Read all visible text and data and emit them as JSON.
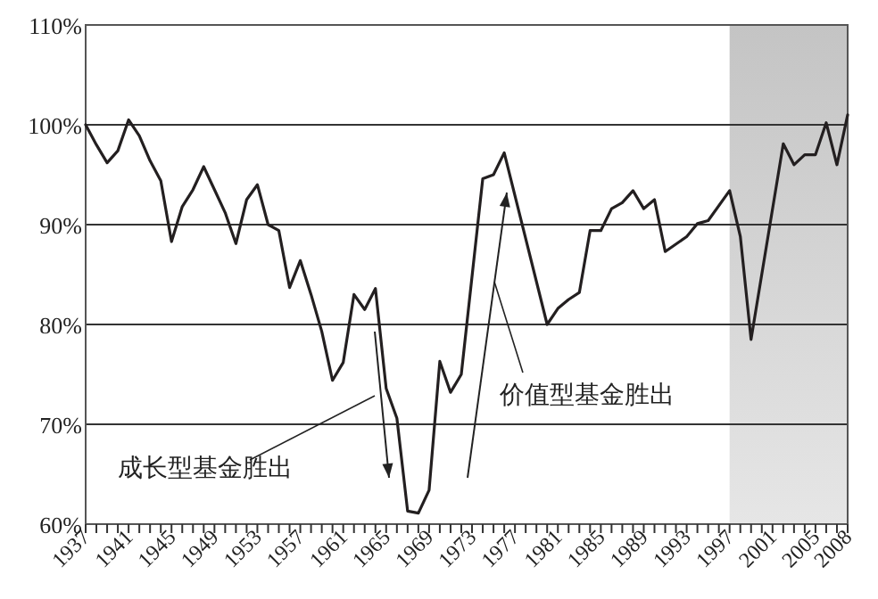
{
  "chart_data": {
    "type": "line",
    "x": [
      1937,
      1938,
      1939,
      1940,
      1941,
      1942,
      1943,
      1944,
      1945,
      1946,
      1947,
      1948,
      1949,
      1950,
      1951,
      1952,
      1953,
      1954,
      1955,
      1956,
      1957,
      1958,
      1959,
      1960,
      1961,
      1962,
      1963,
      1964,
      1965,
      1966,
      1967,
      1968,
      1969,
      1970,
      1971,
      1972,
      1974,
      1975,
      1976,
      1980,
      1981,
      1982,
      1983,
      1984,
      1985,
      1986,
      1987,
      1988,
      1989,
      1990,
      1991,
      1993,
      1994,
      1995,
      1997,
      1998,
      1999,
      2002,
      2003,
      2004,
      2005,
      2006,
      2007,
      2008
    ],
    "series": [
      {
        "color": "#231f20",
        "values": [
          100,
          98,
          96.2,
          97.4,
          100.5,
          98.9,
          96.4,
          94.4,
          88.3,
          91.8,
          93.5,
          95.8,
          93.5,
          91.2,
          88.1,
          92.5,
          94,
          90,
          89.4,
          83.7,
          86.4,
          83,
          79.3,
          74.4,
          76.2,
          83,
          81.5,
          83.6,
          73.6,
          70.6,
          61.3,
          61.1,
          63.4,
          76.3,
          73.2,
          75,
          94.6,
          95,
          97.2,
          80,
          81.6,
          82.5,
          83.2,
          89.4,
          89.4,
          91.6,
          92.2,
          93.4,
          91.6,
          92.5,
          87.3,
          88.8,
          90.1,
          90.4,
          93.4,
          88.8,
          78.5,
          98.1,
          96,
          97,
          97,
          100.2,
          96,
          101
        ]
      }
    ],
    "xlim": [
      1937,
      2008
    ],
    "ylim": [
      60,
      110
    ],
    "xticks": [
      1937,
      {
        "value": 1938,
        "label": null
      },
      {
        "value": 1939,
        "label": null
      },
      {
        "value": 1940,
        "label": null
      },
      1941,
      {
        "value": 1942,
        "label": null
      },
      {
        "value": 1943,
        "label": null
      },
      {
        "value": 1944,
        "label": null
      },
      1945,
      {
        "value": 1946,
        "label": null
      },
      {
        "value": 1947,
        "label": null
      },
      {
        "value": 1948,
        "label": null
      },
      1949,
      {
        "value": 1950,
        "label": null
      },
      {
        "value": 1951,
        "label": null
      },
      {
        "value": 1952,
        "label": null
      },
      1953,
      {
        "value": 1954,
        "label": null
      },
      {
        "value": 1955,
        "label": null
      },
      {
        "value": 1956,
        "label": null
      },
      1957,
      {
        "value": 1958,
        "label": null
      },
      {
        "value": 1959,
        "label": null
      },
      {
        "value": 1960,
        "label": null
      },
      1961,
      {
        "value": 1962,
        "label": null
      },
      {
        "value": 1963,
        "label": null
      },
      {
        "value": 1964,
        "label": null
      },
      1965,
      {
        "value": 1966,
        "label": null
      },
      {
        "value": 1967,
        "label": null
      },
      {
        "value": 1968,
        "label": null
      },
      1969,
      {
        "value": 1970,
        "label": null
      },
      {
        "value": 1971,
        "label": null
      },
      {
        "value": 1972,
        "label": null
      },
      1973,
      {
        "value": 1974,
        "label": null
      },
      {
        "value": 1975,
        "label": null
      },
      {
        "value": 1976,
        "label": null
      },
      1977,
      {
        "value": 1978,
        "label": null
      },
      {
        "value": 1979,
        "label": null
      },
      {
        "value": 1980,
        "label": null
      },
      1981,
      {
        "value": 1982,
        "label": null
      },
      {
        "value": 1983,
        "label": null
      },
      {
        "value": 1984,
        "label": null
      },
      1985,
      {
        "value": 1986,
        "label": null
      },
      {
        "value": 1987,
        "label": null
      },
      {
        "value": 1988,
        "label": null
      },
      1989,
      {
        "value": 1990,
        "label": null
      },
      {
        "value": 1991,
        "label": null
      },
      {
        "value": 1992,
        "label": null
      },
      1993,
      {
        "value": 1994,
        "label": null
      },
      {
        "value": 1995,
        "label": null
      },
      {
        "value": 1996,
        "label": null
      },
      1997,
      {
        "value": 1998,
        "label": null
      },
      {
        "value": 1999,
        "label": null
      },
      {
        "value": 2000,
        "label": null
      },
      2001,
      {
        "value": 2002,
        "label": null
      },
      {
        "value": 2003,
        "label": null
      },
      {
        "value": 2004,
        "label": null
      },
      2005,
      {
        "value": 2006,
        "label": null
      },
      {
        "value": 2007,
        "label": null
      },
      2008
    ],
    "yticks": [
      {
        "value": 60,
        "label": "60%"
      },
      {
        "value": 70,
        "label": "70%"
      },
      {
        "value": 80,
        "label": "80%"
      },
      {
        "value": 90,
        "label": "90%"
      },
      {
        "value": 100,
        "label": "100%"
      },
      {
        "value": 110,
        "label": "110%"
      }
    ],
    "grid": "y",
    "marker": "none",
    "line_style": "solid",
    "bands": [
      {
        "axis": "x",
        "from": 1997,
        "to": 2008,
        "color": "#c4c4c4"
      }
    ],
    "annotations": [
      "成长型基金胜出",
      "价值型基金胜出"
    ]
  }
}
